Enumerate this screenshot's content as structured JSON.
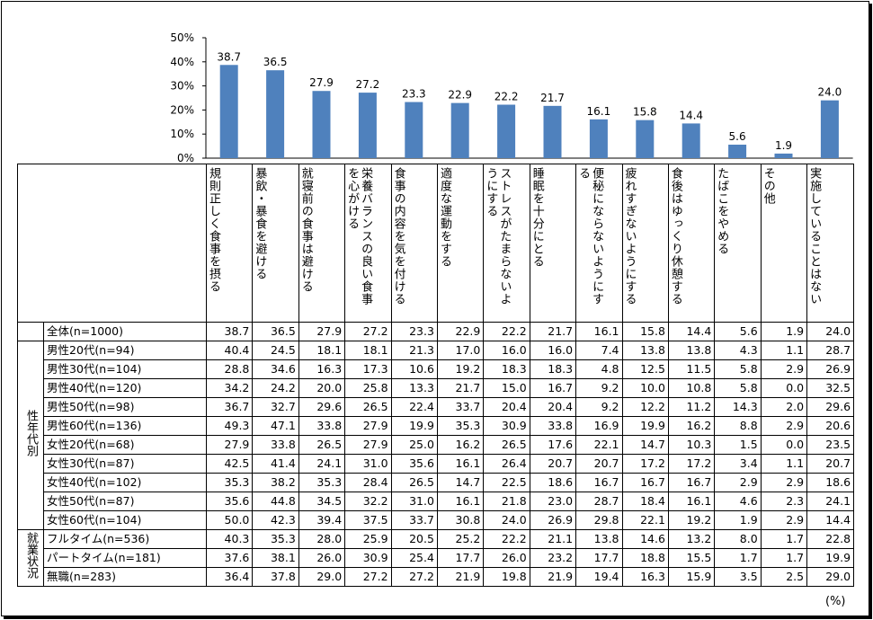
{
  "unit_note": "(%)",
  "chart_data": {
    "type": "bar",
    "categories": [
      "規則正しく食事を摂る",
      "暴飲・暴食を避ける",
      "就寝前の食事は避ける",
      "栄養バランスの良い食事を心がける",
      "食事の内容を気を付ける",
      "適度な運動をする",
      "ストレスがたまらないようにする",
      "睡眠を十分にとる",
      "便秘にならないようにする",
      "疲れすぎないようにする",
      "食後はゆっくり休憩する",
      "たばこをやめる",
      "その他",
      "実施していることはない"
    ],
    "values": [
      38.7,
      36.5,
      27.9,
      27.2,
      23.3,
      22.9,
      22.2,
      21.7,
      16.1,
      15.8,
      14.4,
      5.6,
      1.9,
      24.0
    ],
    "value_labels": [
      "38.7",
      "36.5",
      "27.9",
      "27.2",
      "23.3",
      "22.9",
      "22.2",
      "21.7",
      "16.1",
      "15.8",
      "14.4",
      "5.6",
      "1.9",
      "24.0"
    ],
    "yticks": [
      "0%",
      "10%",
      "20%",
      "30%",
      "40%",
      "50%"
    ],
    "ylim": [
      0,
      50
    ],
    "bar_color": "#4F81BD",
    "grid": false
  },
  "table": {
    "header_cells": [
      "規則正しく食事を摂る",
      "暴飲・暴食を避ける",
      "就寝前の食事は避ける",
      "栄養バランスの良い食事を心がける",
      "食事の内容を気を付ける",
      "適度な運動をする",
      "ストレスがたまらないようにする",
      "睡眠を十分にとる",
      "便秘にならないようにする",
      "疲れすぎないようにする",
      "食後はゆっくり休憩する",
      "たばこをやめる",
      "その他",
      "実施していることはない"
    ],
    "groups": [
      {
        "name": "",
        "rows": [
          {
            "label": "全体(n=1000)",
            "values": [
              "38.7",
              "36.5",
              "27.9",
              "27.2",
              "23.3",
              "22.9",
              "22.2",
              "21.7",
              "16.1",
              "15.8",
              "14.4",
              "5.6",
              "1.9",
              "24.0"
            ]
          }
        ]
      },
      {
        "name": "性年代別",
        "rows": [
          {
            "label": "男性20代(n=94)",
            "values": [
              "40.4",
              "24.5",
              "18.1",
              "18.1",
              "21.3",
              "17.0",
              "16.0",
              "16.0",
              "7.4",
              "13.8",
              "13.8",
              "4.3",
              "1.1",
              "28.7"
            ]
          },
          {
            "label": "男性30代(n=104)",
            "values": [
              "28.8",
              "34.6",
              "16.3",
              "17.3",
              "10.6",
              "19.2",
              "18.3",
              "18.3",
              "4.8",
              "12.5",
              "11.5",
              "5.8",
              "2.9",
              "26.9"
            ]
          },
          {
            "label": "男性40代(n=120)",
            "values": [
              "34.2",
              "24.2",
              "20.0",
              "25.8",
              "13.3",
              "21.7",
              "15.0",
              "16.7",
              "9.2",
              "10.0",
              "10.8",
              "5.8",
              "0.0",
              "32.5"
            ]
          },
          {
            "label": "男性50代(n=98)",
            "values": [
              "36.7",
              "32.7",
              "29.6",
              "26.5",
              "22.4",
              "33.7",
              "20.4",
              "20.4",
              "9.2",
              "12.2",
              "11.2",
              "14.3",
              "2.0",
              "29.6"
            ]
          },
          {
            "label": "男性60代(n=136)",
            "values": [
              "49.3",
              "47.1",
              "33.8",
              "27.9",
              "19.9",
              "35.3",
              "30.9",
              "33.8",
              "16.9",
              "19.9",
              "16.2",
              "8.8",
              "2.9",
              "20.6"
            ]
          },
          {
            "label": "女性20代(n=68)",
            "values": [
              "27.9",
              "33.8",
              "26.5",
              "27.9",
              "25.0",
              "16.2",
              "26.5",
              "17.6",
              "22.1",
              "14.7",
              "10.3",
              "1.5",
              "0.0",
              "23.5"
            ]
          },
          {
            "label": "女性30代(n=87)",
            "values": [
              "42.5",
              "41.4",
              "24.1",
              "31.0",
              "35.6",
              "16.1",
              "26.4",
              "20.7",
              "20.7",
              "17.2",
              "17.2",
              "3.4",
              "1.1",
              "20.7"
            ]
          },
          {
            "label": "女性40代(n=102)",
            "values": [
              "35.3",
              "38.2",
              "35.3",
              "28.4",
              "26.5",
              "14.7",
              "22.5",
              "18.6",
              "16.7",
              "16.7",
              "16.7",
              "2.9",
              "2.9",
              "18.6"
            ]
          },
          {
            "label": "女性50代(n=87)",
            "values": [
              "35.6",
              "44.8",
              "34.5",
              "32.2",
              "31.0",
              "16.1",
              "21.8",
              "23.0",
              "28.7",
              "18.4",
              "16.1",
              "4.6",
              "2.3",
              "24.1"
            ]
          },
          {
            "label": "女性60代(n=104)",
            "values": [
              "50.0",
              "42.3",
              "39.4",
              "37.5",
              "33.7",
              "30.8",
              "24.0",
              "26.9",
              "29.8",
              "22.1",
              "19.2",
              "1.9",
              "2.9",
              "14.4"
            ]
          }
        ]
      },
      {
        "name": "就業状況",
        "rows": [
          {
            "label": "フルタイム(n=536)",
            "values": [
              "40.3",
              "35.3",
              "28.0",
              "25.9",
              "20.5",
              "25.2",
              "22.2",
              "21.1",
              "13.8",
              "14.6",
              "13.2",
              "8.0",
              "1.7",
              "22.8"
            ]
          },
          {
            "label": "パートタイム(n=181)",
            "values": [
              "37.6",
              "38.1",
              "26.0",
              "30.9",
              "25.4",
              "17.7",
              "26.0",
              "23.2",
              "17.7",
              "18.8",
              "15.5",
              "1.7",
              "1.7",
              "19.9"
            ]
          },
          {
            "label": "無職(n=283)",
            "values": [
              "36.4",
              "37.8",
              "29.0",
              "27.2",
              "27.2",
              "21.9",
              "19.8",
              "21.9",
              "19.4",
              "16.3",
              "15.9",
              "3.5",
              "2.5",
              "29.0"
            ]
          }
        ]
      }
    ]
  }
}
